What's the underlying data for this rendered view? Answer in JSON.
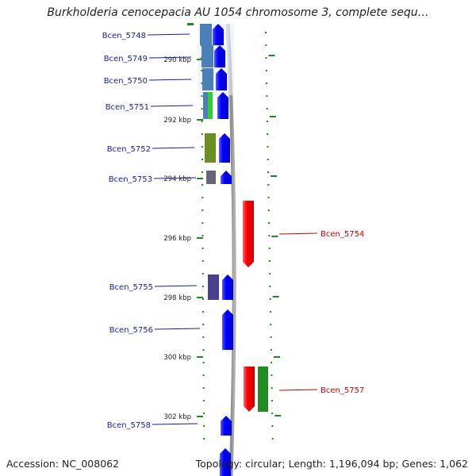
{
  "title": "Burkholderia cenocepacia AU 1054 chromosome 3, complete sequ…",
  "footer": {
    "accession": "Accession: NC_008062",
    "summary": "Topology: circular; Length: 1,196,094 bp; Genes: 1,062"
  },
  "colors": {
    "forward_label": "#1a1aa8",
    "reverse_label": "#cc0000",
    "tick_green": "#1a8a1a",
    "backbone": "#999999"
  },
  "axis": {
    "ticks": [
      {
        "label": "290 kbp",
        "kbp": 290
      },
      {
        "label": "292 kbp",
        "kbp": 292
      },
      {
        "label": "294 kbp",
        "kbp": 294
      },
      {
        "label": "296 kbp",
        "kbp": 296
      },
      {
        "label": "298 kbp",
        "kbp": 298
      },
      {
        "label": "300 kbp",
        "kbp": 300
      },
      {
        "label": "302 kbp",
        "kbp": 302
      }
    ]
  },
  "genes_forward": [
    {
      "name": "Bcen_5748",
      "cog_color": "#4a7fb8"
    },
    {
      "name": "Bcen_5749",
      "cog_color": "#4a7fb8"
    },
    {
      "name": "Bcen_5750",
      "cog_color": "#4a7fb8"
    },
    {
      "name": "Bcen_5751",
      "cog_color": "#4a7fb8",
      "cog_color2": "#33cc33"
    },
    {
      "name": "Bcen_5752",
      "cog_color": "#6b8e23"
    },
    {
      "name": "Bcen_5753",
      "cog_color": "#666677"
    },
    {
      "name": "Bcen_5755",
      "cog_color": "#4b3f8f"
    },
    {
      "name": "Bcen_5756",
      "cog_color": ""
    },
    {
      "name": "Bcen_5758",
      "cog_color": ""
    }
  ],
  "genes_reverse": [
    {
      "name": "Bcen_5754",
      "cog_color": ""
    },
    {
      "name": "Bcen_5757",
      "cog_color": "#228b22"
    }
  ]
}
